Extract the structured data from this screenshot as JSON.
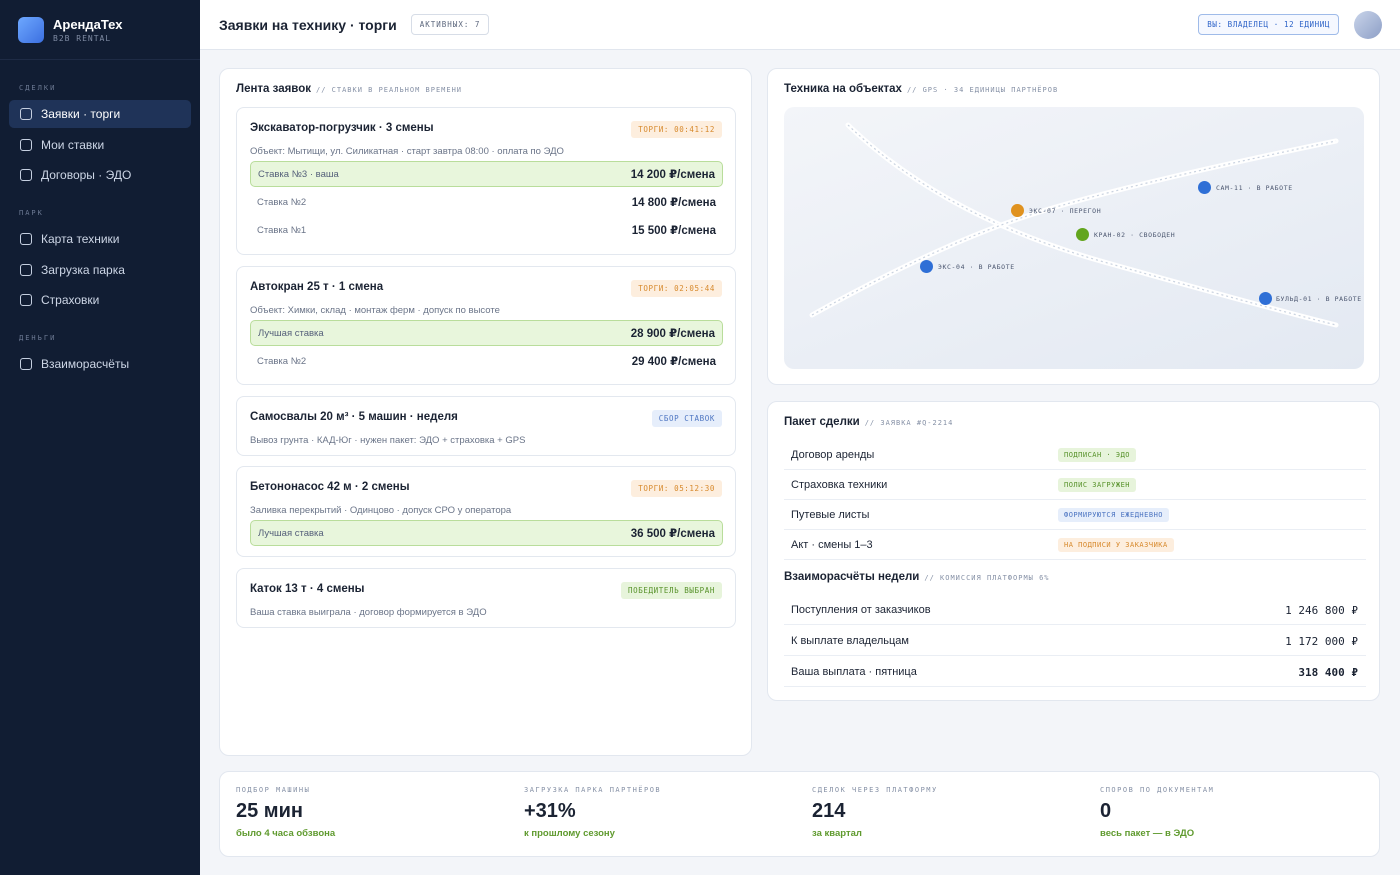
{
  "brand": {
    "name": "АрендаТех",
    "sub": "B2B RENTAL"
  },
  "nav": {
    "groups": [
      {
        "label": "СДЕЛКИ",
        "items": [
          "Заявки · торги",
          "Мои ставки",
          "Договоры · ЭДО"
        ]
      },
      {
        "label": "ПАРК",
        "items": [
          "Карта техники",
          "Загрузка парка",
          "Страховки"
        ]
      },
      {
        "label": "ДЕНЬГИ",
        "items": [
          "Взаиморасчёты"
        ]
      }
    ],
    "active": "Заявки · торги"
  },
  "header": {
    "title": "Заявки на технику · торги",
    "active_badge": "АКТИВНЫХ: 7",
    "role": "ВЫ: ВЛАДЕЛЕЦ · 12 ЕДИНИЦ"
  },
  "feed": {
    "title": "Лента заявок",
    "subtitle": "// СТАВКИ В РЕАЛЬНОМ ВРЕМЕНИ",
    "requests": [
      {
        "title": "Экскаватор-погрузчик · 3 смены",
        "desc": "Объект: Мытищи, ул. Силикатная · старт завтра 08:00 · оплата по ЭДО",
        "tag": "ТОРГИ: 00:41:12",
        "bids": [
          {
            "label": "Ставка №3 · ваша",
            "value": "14 200 ₽/смена",
            "best": true
          },
          {
            "label": "Ставка №2",
            "value": "14 800 ₽/смена",
            "best": false
          },
          {
            "label": "Ставка №1",
            "value": "15 500 ₽/смена",
            "best": false
          }
        ]
      },
      {
        "title": "Автокран 25 т · 1 смена",
        "desc": "Объект: Химки, склад · монтаж ферм · допуск по высоте",
        "tag": "ТОРГИ: 02:05:44",
        "bids": [
          {
            "label": "Лучшая ставка",
            "value": "28 900 ₽/смена",
            "best": true
          },
          {
            "label": "Ставка №2",
            "value": "29 400 ₽/смена",
            "best": false
          }
        ]
      },
      {
        "title": "Самосвалы 20 м³ · 5 машин · неделя",
        "desc": "Вывоз грунта · КАД-Юг · нужен пакет: ЭДО + страховка + GPS",
        "tag": "СБОР СТАВОК",
        "bids": []
      },
      {
        "title": "Бетононасос 42 м · 2 смены",
        "desc": "Заливка перекрытий · Одинцово · допуск СРО у оператора",
        "tag": "ТОРГИ: 05:12:30",
        "bids": [
          {
            "label": "Лучшая ставка",
            "value": "36 500 ₽/смена",
            "best": true
          }
        ]
      },
      {
        "title": "Каток 13 т · 4 смены",
        "desc": "Ваша ставка выиграла · договор формируется в ЭДО",
        "tag": "ПОБЕДИТЕЛЬ ВЫБРАН",
        "bids": []
      }
    ]
  },
  "map": {
    "title": "Техника на объектах",
    "subtitle": "// GPS · 34 ЕДИНИЦЫ ПАРТНЁРОВ",
    "units": [
      {
        "label": "ЭКС-07 · ПЕРЕГОН",
        "color": "#e0921f"
      },
      {
        "label": "КРАН-02 · СВОБОДЕН",
        "color": "#62a51d"
      },
      {
        "label": "САМ-11 · В РАБОТЕ",
        "color": "#2f6fd6"
      },
      {
        "label": "ЭКС-04 · В РАБОТЕ",
        "color": "#2f6fd6"
      },
      {
        "label": "БУЛЬД-01 · В РАБОТЕ",
        "color": "#2f6fd6"
      }
    ]
  },
  "deal": {
    "title": "Пакет сделки",
    "subtitle": "// ЗАЯВКА #Q-2214",
    "docs": [
      {
        "name": "Договор аренды",
        "status": "ПОДПИСАН · ЭДО",
        "color": "green"
      },
      {
        "name": "Страховка техники",
        "status": "ПОЛИС ЗАГРУЖЕН",
        "color": "green"
      },
      {
        "name": "Путевые листы",
        "status": "ФОРМИРУЮТСЯ ЕЖЕДНЕВНО",
        "color": "blue"
      },
      {
        "name": "Акт · смены 1–3",
        "status": "НА ПОДПИСИ У ЗАКАЗЧИКА",
        "color": "orange"
      }
    ],
    "settlement_title": "Взаиморасчёты недели",
    "settlement_subtitle": "// КОМИССИЯ ПЛАТФОРМЫ 6%",
    "settlements": [
      {
        "name": "Поступления от заказчиков",
        "value": "1 246 800 ₽"
      },
      {
        "name": "К выплате владельцам",
        "value": "1 172 000 ₽"
      },
      {
        "name": "Ваша выплата · пятница",
        "value": "318 400 ₽"
      }
    ]
  },
  "kpis": [
    {
      "label": "ПОДБОР МАШИНЫ",
      "value": "25 мин",
      "note": "было 4 часа обзвона"
    },
    {
      "label": "ЗАГРУЗКА ПАРКА ПАРТНЁРОВ",
      "value": "+31%",
      "note": "к прошлому сезону"
    },
    {
      "label": "СДЕЛОК ЧЕРЕЗ ПЛАТФОРМУ",
      "value": "214",
      "note": "за квартал"
    },
    {
      "label": "СПОРОВ ПО ДОКУМЕНТАМ",
      "value": "0",
      "note": "весь пакет — в ЭДО"
    }
  ]
}
